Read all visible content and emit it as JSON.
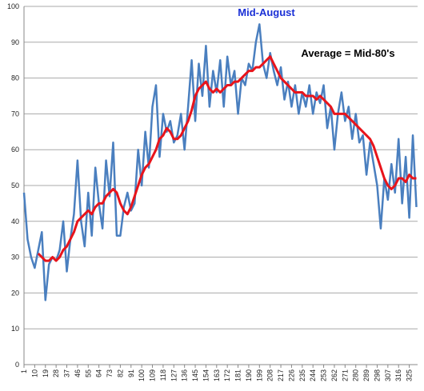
{
  "chart_data": {
    "type": "line",
    "x": [
      1,
      4,
      7,
      10,
      13,
      16,
      19,
      22,
      25,
      28,
      31,
      34,
      37,
      40,
      43,
      46,
      49,
      52,
      55,
      58,
      61,
      64,
      67,
      70,
      73,
      76,
      79,
      82,
      85,
      88,
      91,
      94,
      97,
      100,
      103,
      106,
      109,
      112,
      115,
      118,
      121,
      124,
      127,
      130,
      133,
      136,
      139,
      142,
      145,
      148,
      151,
      154,
      157,
      160,
      163,
      166,
      169,
      172,
      175,
      178,
      181,
      184,
      187,
      190,
      193,
      196,
      199,
      202,
      205,
      208,
      211,
      214,
      217,
      220,
      223,
      226,
      229,
      232,
      235,
      238,
      241,
      244,
      247,
      250,
      253,
      256,
      259,
      262,
      265,
      268,
      271,
      274,
      277,
      280,
      283,
      286,
      289,
      292,
      295,
      298,
      301,
      304,
      307,
      310,
      313,
      316,
      319,
      322,
      325,
      328,
      331
    ],
    "series": [
      {
        "color": "#4a7fbf",
        "width": 2.5,
        "values": [
          48,
          35,
          30,
          27,
          32,
          37,
          18,
          28,
          30,
          29,
          32,
          40,
          26,
          35,
          42,
          57,
          40,
          33,
          48,
          36,
          55,
          45,
          38,
          57,
          47,
          62,
          36,
          36,
          44,
          48,
          43,
          45,
          60,
          50,
          65,
          55,
          72,
          78,
          58,
          70,
          65,
          68,
          62,
          64,
          70,
          60,
          72,
          85,
          68,
          84,
          75,
          89,
          72,
          82,
          76,
          85,
          72,
          86,
          78,
          82,
          70,
          80,
          78,
          84,
          82,
          90,
          95,
          84,
          80,
          87,
          82,
          78,
          83,
          74,
          79,
          72,
          78,
          70,
          76,
          72,
          78,
          70,
          76,
          73,
          78,
          66,
          72,
          60,
          70,
          76,
          68,
          72,
          63,
          70,
          62,
          64,
          53,
          62,
          56,
          50,
          38,
          52,
          46,
          56,
          48,
          63,
          45,
          58,
          41,
          64,
          44
        ]
      },
      {
        "color": "#e8141b",
        "width": 3,
        "values": [
          null,
          null,
          null,
          null,
          31,
          30,
          29,
          29,
          30,
          29,
          30,
          32,
          33,
          35,
          37,
          40,
          41,
          42,
          43,
          42,
          44,
          45,
          45,
          47,
          48,
          49,
          48,
          45,
          43,
          42,
          44,
          47,
          50,
          53,
          55,
          56,
          58,
          60,
          63,
          64,
          66,
          65,
          63,
          63,
          64,
          66,
          68,
          71,
          75,
          77,
          78,
          79,
          77,
          76,
          77,
          76,
          77,
          78,
          78,
          79,
          79,
          80,
          81,
          82,
          82,
          83,
          83,
          84,
          85,
          86,
          84,
          82,
          80,
          79,
          78,
          77,
          76,
          76,
          76,
          75,
          75,
          75,
          74,
          75,
          74,
          73,
          72,
          70,
          70,
          70,
          70,
          69,
          68,
          67,
          66,
          65,
          64,
          63,
          61,
          58,
          55,
          52,
          50,
          49,
          50,
          52,
          52,
          51,
          53,
          52,
          52
        ]
      }
    ],
    "xlim": [
      1,
      332
    ],
    "xticks": [
      1,
      10,
      19,
      28,
      37,
      46,
      55,
      64,
      73,
      82,
      91,
      100,
      109,
      118,
      127,
      136,
      145,
      154,
      163,
      172,
      181,
      190,
      199,
      208,
      217,
      226,
      235,
      244,
      253,
      262,
      271,
      280,
      289,
      298,
      307,
      316,
      325
    ],
    "ylim": [
      0,
      100
    ],
    "yticks": [
      0,
      10,
      20,
      30,
      40,
      50,
      60,
      70,
      80,
      90,
      100
    ],
    "grid": true,
    "annotations": [
      {
        "text": "Mid-August",
        "color": "#1a2fd6"
      },
      {
        "text": "Average = Mid-80's",
        "color": "#000000"
      }
    ]
  }
}
